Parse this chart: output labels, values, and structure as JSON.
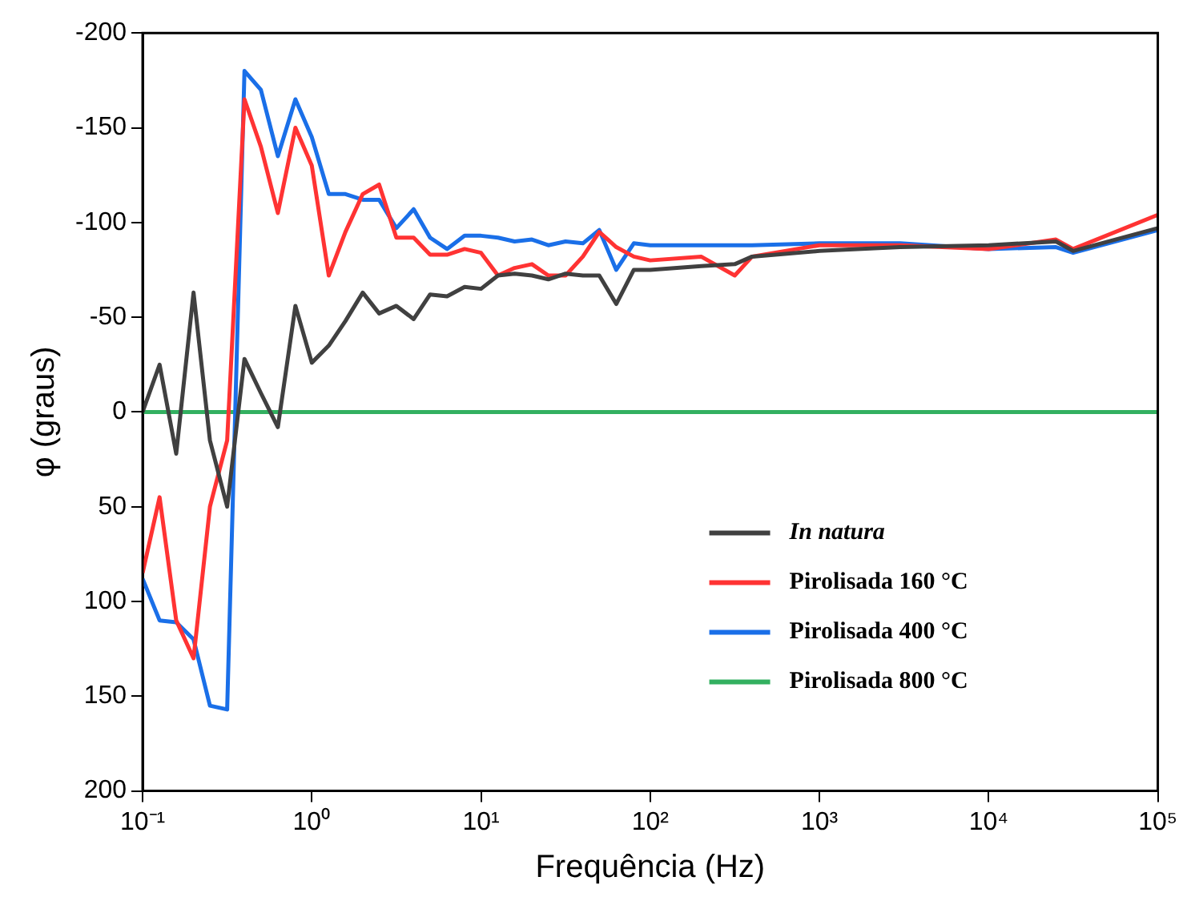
{
  "chart_data": {
    "type": "line",
    "xlabel": "Frequência (Hz)",
    "ylabel": "φ (graus)",
    "x": [
      0.1,
      0.126,
      0.158,
      0.2,
      0.25,
      0.316,
      0.4,
      0.5,
      0.63,
      0.8,
      1,
      1.26,
      1.58,
      2,
      2.5,
      3.16,
      4,
      5,
      6.3,
      8,
      10,
      12.6,
      15.8,
      20,
      25,
      31.6,
      40,
      50,
      63,
      80,
      100,
      200,
      316,
      400,
      1000,
      3000,
      10000,
      25000,
      31600,
      100000
    ],
    "series": [
      {
        "name": "In natura",
        "color": "#404040",
        "values": [
          0,
          -25,
          22,
          -63,
          15,
          50,
          -28,
          -10,
          8,
          -56,
          -26,
          -35,
          -48,
          -63,
          -52,
          -56,
          -49,
          -62,
          -61,
          -66,
          -65,
          -72,
          -73,
          -72,
          -70,
          -73,
          -72,
          -72,
          -57,
          -75,
          -75,
          -77,
          -78,
          -82,
          -85,
          -87,
          -88,
          -90,
          -85,
          -97
        ]
      },
      {
        "name": "Pirolisada 160 °C",
        "color": "#ff3333",
        "values": [
          85,
          45,
          110,
          130,
          50,
          15,
          -165,
          -140,
          -105,
          -150,
          -130,
          -72,
          -95,
          -115,
          -120,
          -92,
          -92,
          -83,
          -83,
          -86,
          -84,
          -72,
          -76,
          -78,
          -72,
          -72,
          -82,
          -95,
          -87,
          -82,
          -80,
          -82,
          -72,
          -82,
          -88,
          -88,
          -86,
          -91,
          -86,
          -104
        ]
      },
      {
        "name": "Pirolisada 400 °C",
        "color": "#1a6fe8",
        "values": [
          88,
          110,
          111,
          120,
          155,
          157,
          -180,
          -170,
          -135,
          -165,
          -145,
          -115,
          -115,
          -112,
          -112,
          -97,
          -107,
          -92,
          -86,
          -93,
          -93,
          -92,
          -90,
          -91,
          -88,
          -90,
          -89,
          -96,
          -75,
          -89,
          -88,
          -88,
          -88,
          -88,
          -89,
          -89,
          -86,
          -87,
          -84,
          -96
        ]
      },
      {
        "name": "Pirolisada 800 °C",
        "color": "#33b060",
        "values": [
          0,
          0,
          0,
          0,
          0,
          0,
          0,
          0,
          0,
          0,
          0,
          0,
          0,
          0,
          0,
          0,
          0,
          0,
          0,
          0,
          0,
          0,
          0,
          0,
          0,
          0,
          0,
          0,
          0,
          0,
          0,
          0,
          0,
          0,
          0,
          0,
          0,
          0,
          0,
          0
        ]
      }
    ],
    "log": "x",
    "xlim": [
      0.1,
      100000
    ],
    "xticks": [
      {
        "value": 0.1,
        "label": "10⁻¹"
      },
      {
        "value": 1,
        "label": "10⁰"
      },
      {
        "value": 10,
        "label": "10¹"
      },
      {
        "value": 100,
        "label": "10²"
      },
      {
        "value": 1000,
        "label": "10³"
      },
      {
        "value": 10000,
        "label": "10⁴"
      },
      {
        "value": 100000,
        "label": "10⁵"
      }
    ],
    "ylim": [
      200,
      -200
    ],
    "yticks": [
      200,
      150,
      100,
      50,
      0,
      -50,
      -100,
      -150,
      -200
    ],
    "legend": "right",
    "grid": false,
    "marker": "none",
    "line_style": "solid"
  }
}
